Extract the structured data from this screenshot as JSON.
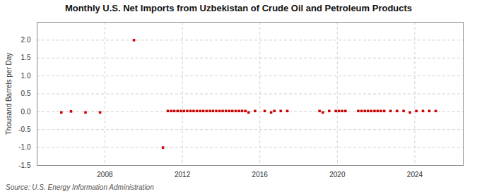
{
  "chart_data": {
    "type": "scatter",
    "title": "Monthly U.S. Net Imports from Uzbekistan of Crude Oil and Petroleum Products",
    "ylabel": "Thousand Barrels per Day",
    "annotations": [
      "Source: U.S. Energy Information Administration"
    ],
    "series": [
      {
        "color": "#cc0000",
        "marker": "square",
        "x": [
          2005.75,
          2006.25,
          2007.0,
          2007.75,
          2009.5,
          2011.0,
          2011.25,
          2011.42,
          2011.58,
          2011.75,
          2011.92,
          2012.08,
          2012.25,
          2012.42,
          2012.58,
          2012.75,
          2012.92,
          2013.08,
          2013.25,
          2013.42,
          2013.58,
          2013.75,
          2013.92,
          2014.08,
          2014.25,
          2014.42,
          2014.58,
          2014.75,
          2014.92,
          2015.08,
          2015.25,
          2015.42,
          2015.75,
          2016.25,
          2016.58,
          2016.75,
          2017.08,
          2017.42,
          2019.08,
          2019.25,
          2019.58,
          2019.92,
          2020.08,
          2020.25,
          2020.42,
          2021.08,
          2021.25,
          2021.42,
          2021.58,
          2021.75,
          2021.92,
          2022.08,
          2022.25,
          2022.42,
          2022.75,
          2023.08,
          2023.42,
          2023.75,
          2024.08,
          2024.42,
          2024.75,
          2025.08
        ],
        "values": [
          -0.02,
          0.01,
          -0.02,
          -0.02,
          2.0,
          -1.0,
          0.02,
          0.02,
          0.02,
          0.02,
          0.02,
          0.02,
          0.02,
          0.02,
          0.02,
          0.02,
          0.02,
          0.02,
          0.02,
          0.02,
          0.02,
          0.02,
          0.02,
          0.02,
          0.02,
          0.02,
          0.02,
          0.02,
          0.02,
          0.02,
          0.02,
          -0.02,
          0.02,
          0.02,
          -0.02,
          0.02,
          0.02,
          0.02,
          0.02,
          -0.02,
          0.02,
          0.02,
          0.02,
          0.02,
          0.02,
          0.02,
          0.02,
          0.02,
          0.02,
          0.02,
          0.02,
          0.02,
          0.02,
          0.02,
          0.02,
          0.02,
          0.02,
          -0.02,
          0.02,
          0.02,
          0.02,
          0.02
        ]
      }
    ],
    "xlim": [
      2004.5,
      2026.5
    ],
    "xticks": [
      2008,
      2012,
      2016,
      2020,
      2024
    ],
    "ylim": [
      -1.5,
      2.5
    ],
    "yticks": [
      -1.5,
      {
        "value": -1.0,
        "label": "-1.0"
      },
      -0.5,
      {
        "value": 0.0,
        "label": "0.0"
      },
      0.5,
      {
        "value": 1.0,
        "label": "1.0"
      },
      1.5,
      {
        "value": 2.0,
        "label": "2.0"
      }
    ],
    "grid": true
  }
}
